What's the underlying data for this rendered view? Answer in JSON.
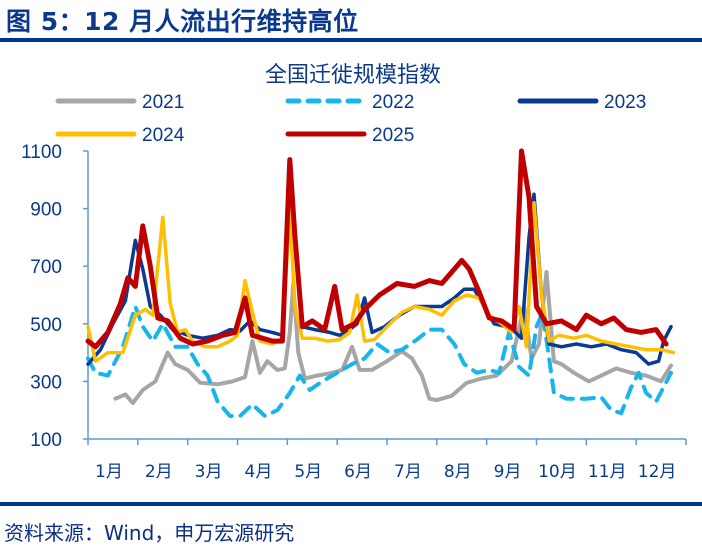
{
  "figure": {
    "title": "图 5：12 月人流出行维持高位",
    "source": "资料来源：Wind，申万宏源研究"
  },
  "chart_data": {
    "type": "line",
    "title": "全国迁徙规模指数",
    "xlabel": "",
    "ylabel": "",
    "ylim": [
      100,
      1100
    ],
    "yticks": [
      100,
      300,
      500,
      700,
      900,
      1100
    ],
    "categories": [
      "1月",
      "2月",
      "3月",
      "4月",
      "5月",
      "6月",
      "7月",
      "8月",
      "9月",
      "10月",
      "11月",
      "12月"
    ],
    "grid": false,
    "legend_position": "top",
    "x_unit": "month index (0 = Jan 1, 12 = Dec 31)",
    "series": [
      {
        "name": "2021",
        "color": "#a6a6a6",
        "dash": "solid",
        "points": [
          [
            0.55,
            240
          ],
          [
            0.75,
            255
          ],
          [
            0.9,
            225
          ],
          [
            1.1,
            270
          ],
          [
            1.35,
            300
          ],
          [
            1.6,
            400
          ],
          [
            1.75,
            360
          ],
          [
            2.0,
            340
          ],
          [
            2.25,
            295
          ],
          [
            2.6,
            290
          ],
          [
            2.9,
            300
          ],
          [
            3.15,
            315
          ],
          [
            3.3,
            440
          ],
          [
            3.45,
            330
          ],
          [
            3.6,
            370
          ],
          [
            3.8,
            340
          ],
          [
            3.95,
            345
          ],
          [
            4.05,
            470
          ],
          [
            4.12,
            640
          ],
          [
            4.22,
            400
          ],
          [
            4.35,
            310
          ],
          [
            4.6,
            320
          ],
          [
            4.9,
            330
          ],
          [
            5.1,
            340
          ],
          [
            5.3,
            420
          ],
          [
            5.45,
            340
          ],
          [
            5.7,
            340
          ],
          [
            6.0,
            370
          ],
          [
            6.3,
            405
          ],
          [
            6.5,
            380
          ],
          [
            6.7,
            320
          ],
          [
            6.85,
            240
          ],
          [
            7.0,
            235
          ],
          [
            7.3,
            250
          ],
          [
            7.6,
            295
          ],
          [
            7.9,
            310
          ],
          [
            8.2,
            320
          ],
          [
            8.5,
            370
          ],
          [
            8.75,
            560
          ],
          [
            8.9,
            380
          ],
          [
            9.05,
            430
          ],
          [
            9.2,
            680
          ],
          [
            9.35,
            370
          ],
          [
            9.5,
            360
          ],
          [
            9.75,
            330
          ],
          [
            10.05,
            300
          ],
          [
            10.3,
            320
          ],
          [
            10.6,
            345
          ],
          [
            10.9,
            330
          ],
          [
            11.2,
            320
          ],
          [
            11.5,
            300
          ],
          [
            11.7,
            355
          ]
        ]
      },
      {
        "name": "2022",
        "color": "#18b4ec",
        "dash": "dashed",
        "points": [
          [
            0.0,
            380
          ],
          [
            0.15,
            330
          ],
          [
            0.4,
            320
          ],
          [
            0.7,
            420
          ],
          [
            0.95,
            560
          ],
          [
            1.1,
            490
          ],
          [
            1.3,
            440
          ],
          [
            1.5,
            500
          ],
          [
            1.75,
            420
          ],
          [
            2.0,
            420
          ],
          [
            2.2,
            360
          ],
          [
            2.4,
            320
          ],
          [
            2.6,
            230
          ],
          [
            2.85,
            180
          ],
          [
            3.05,
            180
          ],
          [
            3.3,
            220
          ],
          [
            3.55,
            180
          ],
          [
            3.8,
            200
          ],
          [
            4.05,
            260
          ],
          [
            4.25,
            320
          ],
          [
            4.45,
            270
          ],
          [
            4.7,
            300
          ],
          [
            5.0,
            330
          ],
          [
            5.3,
            360
          ],
          [
            5.55,
            380
          ],
          [
            5.8,
            430
          ],
          [
            6.05,
            400
          ],
          [
            6.3,
            410
          ],
          [
            6.6,
            445
          ],
          [
            6.85,
            480
          ],
          [
            7.1,
            480
          ],
          [
            7.35,
            430
          ],
          [
            7.55,
            360
          ],
          [
            7.8,
            330
          ],
          [
            8.05,
            340
          ],
          [
            8.25,
            330
          ],
          [
            8.45,
            470
          ],
          [
            8.65,
            350
          ],
          [
            8.85,
            320
          ],
          [
            9.0,
            490
          ],
          [
            9.12,
            540
          ],
          [
            9.22,
            420
          ],
          [
            9.35,
            260
          ],
          [
            9.6,
            240
          ],
          [
            10.0,
            240
          ],
          [
            10.3,
            245
          ],
          [
            10.5,
            200
          ],
          [
            10.7,
            190
          ],
          [
            10.9,
            280
          ],
          [
            11.05,
            330
          ],
          [
            11.2,
            260
          ],
          [
            11.4,
            230
          ],
          [
            11.55,
            280
          ],
          [
            11.7,
            330
          ]
        ]
      },
      {
        "name": "2023",
        "color": "#0a3a94",
        "dash": "solid",
        "points": [
          [
            0.0,
            360
          ],
          [
            0.25,
            410
          ],
          [
            0.5,
            500
          ],
          [
            0.75,
            580
          ],
          [
            0.95,
            790
          ],
          [
            1.1,
            690
          ],
          [
            1.25,
            560
          ],
          [
            1.45,
            530
          ],
          [
            1.7,
            480
          ],
          [
            2.0,
            460
          ],
          [
            2.3,
            450
          ],
          [
            2.6,
            460
          ],
          [
            2.85,
            480
          ],
          [
            3.05,
            475
          ],
          [
            3.25,
            510
          ],
          [
            3.45,
            480
          ],
          [
            3.7,
            470
          ],
          [
            3.9,
            460
          ],
          [
            4.05,
            1020
          ],
          [
            4.15,
            800
          ],
          [
            4.3,
            490
          ],
          [
            4.55,
            480
          ],
          [
            4.85,
            470
          ],
          [
            5.05,
            460
          ],
          [
            5.25,
            480
          ],
          [
            5.4,
            500
          ],
          [
            5.55,
            590
          ],
          [
            5.7,
            470
          ],
          [
            5.95,
            490
          ],
          [
            6.25,
            530
          ],
          [
            6.55,
            560
          ],
          [
            6.85,
            560
          ],
          [
            7.1,
            560
          ],
          [
            7.35,
            590
          ],
          [
            7.55,
            620
          ],
          [
            7.75,
            620
          ],
          [
            7.95,
            560
          ],
          [
            8.15,
            500
          ],
          [
            8.4,
            490
          ],
          [
            8.55,
            475
          ],
          [
            8.7,
            450
          ],
          [
            8.85,
            800
          ],
          [
            8.95,
            950
          ],
          [
            9.1,
            600
          ],
          [
            9.25,
            430
          ],
          [
            9.5,
            420
          ],
          [
            9.8,
            430
          ],
          [
            10.1,
            420
          ],
          [
            10.4,
            430
          ],
          [
            10.7,
            410
          ],
          [
            11.0,
            400
          ],
          [
            11.25,
            360
          ],
          [
            11.45,
            370
          ],
          [
            11.55,
            440
          ],
          [
            11.7,
            490
          ]
        ]
      },
      {
        "name": "2024",
        "color": "#ffbf00",
        "dash": "solid",
        "points": [
          [
            0.0,
            490
          ],
          [
            0.15,
            370
          ],
          [
            0.4,
            400
          ],
          [
            0.7,
            400
          ],
          [
            0.95,
            530
          ],
          [
            1.15,
            550
          ],
          [
            1.3,
            530
          ],
          [
            1.5,
            870
          ],
          [
            1.65,
            570
          ],
          [
            1.8,
            470
          ],
          [
            1.95,
            480
          ],
          [
            2.1,
            440
          ],
          [
            2.35,
            420
          ],
          [
            2.6,
            420
          ],
          [
            2.85,
            440
          ],
          [
            3.0,
            460
          ],
          [
            3.15,
            650
          ],
          [
            3.3,
            540
          ],
          [
            3.45,
            440
          ],
          [
            3.7,
            430
          ],
          [
            3.9,
            450
          ],
          [
            4.05,
            900
          ],
          [
            4.15,
            560
          ],
          [
            4.3,
            450
          ],
          [
            4.55,
            450
          ],
          [
            4.8,
            440
          ],
          [
            5.05,
            445
          ],
          [
            5.25,
            470
          ],
          [
            5.4,
            600
          ],
          [
            5.55,
            440
          ],
          [
            5.75,
            445
          ],
          [
            6.0,
            490
          ],
          [
            6.3,
            540
          ],
          [
            6.55,
            560
          ],
          [
            6.85,
            550
          ],
          [
            7.1,
            530
          ],
          [
            7.35,
            580
          ],
          [
            7.6,
            600
          ],
          [
            7.85,
            590
          ],
          [
            8.05,
            530
          ],
          [
            8.3,
            500
          ],
          [
            8.5,
            470
          ],
          [
            8.65,
            560
          ],
          [
            8.8,
            420
          ],
          [
            8.95,
            920
          ],
          [
            9.1,
            600
          ],
          [
            9.25,
            440
          ],
          [
            9.45,
            460
          ],
          [
            9.75,
            450
          ],
          [
            10.0,
            460
          ],
          [
            10.3,
            440
          ],
          [
            10.6,
            430
          ],
          [
            10.9,
            420
          ],
          [
            11.2,
            410
          ],
          [
            11.5,
            410
          ],
          [
            11.75,
            400
          ]
        ]
      },
      {
        "name": "2025",
        "color": "#c00000",
        "dash": "solid",
        "points": [
          [
            0.0,
            440
          ],
          [
            0.15,
            420
          ],
          [
            0.4,
            470
          ],
          [
            0.65,
            570
          ],
          [
            0.8,
            660
          ],
          [
            0.95,
            630
          ],
          [
            1.1,
            840
          ],
          [
            1.25,
            700
          ],
          [
            1.4,
            520
          ],
          [
            1.6,
            510
          ],
          [
            1.85,
            450
          ],
          [
            2.1,
            430
          ],
          [
            2.4,
            440
          ],
          [
            2.7,
            460
          ],
          [
            2.95,
            470
          ],
          [
            3.15,
            590
          ],
          [
            3.3,
            460
          ],
          [
            3.5,
            450
          ],
          [
            3.7,
            440
          ],
          [
            3.9,
            440
          ],
          [
            4.05,
            1070
          ],
          [
            4.15,
            810
          ],
          [
            4.3,
            490
          ],
          [
            4.5,
            510
          ],
          [
            4.75,
            480
          ],
          [
            4.95,
            630
          ],
          [
            5.1,
            480
          ],
          [
            5.35,
            500
          ],
          [
            5.55,
            550
          ],
          [
            5.85,
            600
          ],
          [
            6.2,
            640
          ],
          [
            6.55,
            630
          ],
          [
            6.85,
            650
          ],
          [
            7.1,
            640
          ],
          [
            7.35,
            690
          ],
          [
            7.5,
            720
          ],
          [
            7.65,
            690
          ],
          [
            7.85,
            610
          ],
          [
            8.05,
            520
          ],
          [
            8.3,
            510
          ],
          [
            8.55,
            480
          ],
          [
            8.7,
            1100
          ],
          [
            8.85,
            940
          ],
          [
            9.0,
            560
          ],
          [
            9.2,
            500
          ],
          [
            9.5,
            510
          ],
          [
            9.8,
            480
          ],
          [
            10.0,
            530
          ],
          [
            10.3,
            500
          ],
          [
            10.55,
            520
          ],
          [
            10.8,
            480
          ],
          [
            11.1,
            470
          ],
          [
            11.4,
            480
          ],
          [
            11.6,
            430
          ]
        ]
      }
    ]
  }
}
